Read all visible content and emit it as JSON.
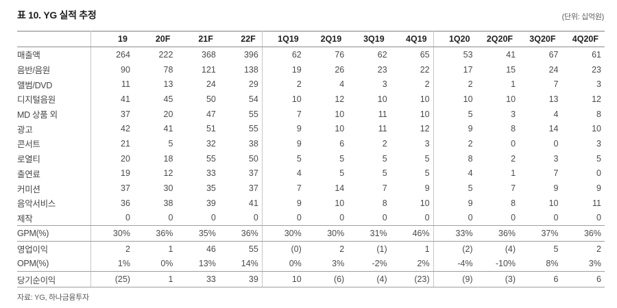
{
  "header": {
    "title": "표 10. YG 실적 추정",
    "unit": "(단위: 십억원)"
  },
  "table": {
    "columns": [
      "19",
      "20F",
      "21F",
      "22F",
      "1Q19",
      "2Q19",
      "3Q19",
      "4Q19",
      "1Q20",
      "2Q20F",
      "3Q20F",
      "4Q20F"
    ],
    "separator_after_columns": [
      3,
      7
    ],
    "rows": [
      {
        "label": "매출액",
        "indent": 0,
        "values": [
          "264",
          "222",
          "368",
          "396",
          "62",
          "76",
          "62",
          "65",
          "53",
          "41",
          "67",
          "61"
        ]
      },
      {
        "label": "음반/음원",
        "indent": 1,
        "values": [
          "90",
          "78",
          "121",
          "138",
          "19",
          "26",
          "23",
          "22",
          "17",
          "15",
          "24",
          "23"
        ]
      },
      {
        "label": "앨범/DVD",
        "indent": 2,
        "values": [
          "11",
          "13",
          "24",
          "29",
          "2",
          "4",
          "3",
          "2",
          "2",
          "1",
          "7",
          "3"
        ]
      },
      {
        "label": "디지털음원",
        "indent": 2,
        "values": [
          "41",
          "45",
          "50",
          "54",
          "10",
          "12",
          "10",
          "10",
          "10",
          "10",
          "13",
          "12"
        ]
      },
      {
        "label": "MD 상품 외",
        "indent": 2,
        "values": [
          "37",
          "20",
          "47",
          "55",
          "7",
          "10",
          "11",
          "10",
          "5",
          "3",
          "4",
          "8"
        ]
      },
      {
        "label": "광고",
        "indent": 1,
        "values": [
          "42",
          "41",
          "51",
          "55",
          "9",
          "10",
          "11",
          "12",
          "9",
          "8",
          "14",
          "10"
        ]
      },
      {
        "label": "콘서트",
        "indent": 1,
        "values": [
          "21",
          "5",
          "32",
          "38",
          "9",
          "6",
          "2",
          "3",
          "2",
          "0",
          "0",
          "3"
        ]
      },
      {
        "label": "로열티",
        "indent": 1,
        "values": [
          "20",
          "18",
          "55",
          "50",
          "5",
          "5",
          "5",
          "5",
          "8",
          "2",
          "3",
          "5"
        ]
      },
      {
        "label": "출연료",
        "indent": 1,
        "values": [
          "19",
          "12",
          "33",
          "37",
          "4",
          "5",
          "5",
          "5",
          "4",
          "1",
          "7",
          "0"
        ]
      },
      {
        "label": "커미션",
        "indent": 1,
        "values": [
          "37",
          "30",
          "35",
          "37",
          "7",
          "14",
          "7",
          "9",
          "5",
          "7",
          "9",
          "9"
        ]
      },
      {
        "label": "음악서비스",
        "indent": 1,
        "values": [
          "36",
          "38",
          "39",
          "41",
          "9",
          "10",
          "8",
          "10",
          "9",
          "8",
          "10",
          "11"
        ]
      },
      {
        "label": "제작",
        "indent": 1,
        "rule_below": true,
        "values": [
          "0",
          "0",
          "0",
          "0",
          "0",
          "0",
          "0",
          "0",
          "0",
          "0",
          "0",
          "0"
        ]
      },
      {
        "label": "GPM(%)",
        "indent": 1,
        "rule_below": true,
        "values": [
          "30%",
          "36%",
          "35%",
          "36%",
          "30%",
          "30%",
          "31%",
          "46%",
          "33%",
          "36%",
          "37%",
          "36%"
        ]
      },
      {
        "label": "영업이익",
        "indent": 0,
        "values": [
          "2",
          "1",
          "46",
          "55",
          "(0)",
          "2",
          "(1)",
          "1",
          "(2)",
          "(4)",
          "5",
          "2"
        ]
      },
      {
        "label": "OPM(%)",
        "indent": 1,
        "rule_below": true,
        "values": [
          "1%",
          "0%",
          "13%",
          "14%",
          "0%",
          "3%",
          "-2%",
          "2%",
          "-4%",
          "-10%",
          "8%",
          "3%"
        ]
      },
      {
        "label": "당기순이익",
        "indent": 0,
        "rule_below": true,
        "values": [
          "(25)",
          "1",
          "33",
          "39",
          "10",
          "(6)",
          "(4)",
          "(23)",
          "(9)",
          "(3)",
          "6",
          "6"
        ]
      }
    ]
  },
  "footer": {
    "source": "자료: YG, 하나금융투자"
  }
}
